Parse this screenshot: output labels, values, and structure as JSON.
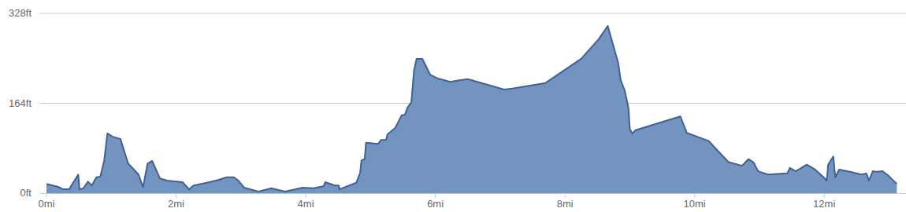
{
  "chart_data": {
    "type": "area",
    "color": "#7394be",
    "grid": true,
    "xlim": [
      0,
      13.14
    ],
    "ylim": [
      0,
      328
    ],
    "xticks": [
      {
        "value": 0,
        "label": "0mi"
      },
      {
        "value": 2,
        "label": "2mi"
      },
      {
        "value": 4,
        "label": "4mi"
      },
      {
        "value": 6,
        "label": "6mi"
      },
      {
        "value": 8,
        "label": "8mi"
      },
      {
        "value": 10,
        "label": "10mi"
      },
      {
        "value": 12,
        "label": "12mi"
      }
    ],
    "yticks": [
      {
        "value": 0,
        "label": "0ft"
      },
      {
        "value": 164,
        "label": "164ft"
      },
      {
        "value": 328,
        "label": "328ft"
      }
    ],
    "x": [
      0,
      0.19,
      0.26,
      0.35,
      0.49,
      0.51,
      0.57,
      0.64,
      0.7,
      0.77,
      0.83,
      0.89,
      0.94,
      1.02,
      1.14,
      1.26,
      1.42,
      1.49,
      1.56,
      1.63,
      1.75,
      1.86,
      2.1,
      2.2,
      2.27,
      2.47,
      2.65,
      2.78,
      2.89,
      2.96,
      3.05,
      3.27,
      3.47,
      3.68,
      3.95,
      4.12,
      4.28,
      4.3,
      4.45,
      4.51,
      4.52,
      4.78,
      4.84,
      4.86,
      4.91,
      4.93,
      5.12,
      5.16,
      5.24,
      5.26,
      5.38,
      5.48,
      5.53,
      5.57,
      5.63,
      5.67,
      5.71,
      5.8,
      5.92,
      6.04,
      6.23,
      6.37,
      6.5,
      7.06,
      7.19,
      7.7,
      8.25,
      8.52,
      8.66,
      8.82,
      8.86,
      8.92,
      8.98,
      9.0,
      9.04,
      9.09,
      9.78,
      9.88,
      10.22,
      10.32,
      10.52,
      10.73,
      10.83,
      10.91,
      10.98,
      11.13,
      11.43,
      11.47,
      11.56,
      11.73,
      11.85,
      11.98,
      12.04,
      12.06,
      12.14,
      12.17,
      12.23,
      12.4,
      12.57,
      12.65,
      12.69,
      12.75,
      12.8,
      12.9,
      12.98,
      13.04,
      13.12
    ],
    "values": [
      17,
      11,
      7,
      7,
      34,
      7,
      9,
      21,
      14,
      29,
      30,
      59,
      109,
      103,
      99,
      54,
      34,
      11,
      54,
      59,
      27,
      23,
      20,
      7,
      14,
      19,
      24,
      29,
      29,
      23,
      10,
      3,
      9,
      3,
      10,
      9,
      13,
      20,
      14,
      14,
      7,
      19,
      37,
      60,
      62,
      92,
      90,
      97,
      97,
      107,
      119,
      142,
      143,
      156,
      166,
      223,
      245,
      245,
      216,
      209,
      203,
      206,
      208,
      189,
      191,
      201,
      245,
      281,
      305,
      238,
      206,
      188,
      155,
      117,
      109,
      115,
      140,
      110,
      95,
      82,
      57,
      50,
      62,
      56,
      40,
      34,
      36,
      46,
      40,
      52,
      44,
      30,
      23,
      52,
      67,
      29,
      43,
      39,
      34,
      36,
      23,
      40,
      39,
      40,
      33,
      26,
      17
    ]
  }
}
